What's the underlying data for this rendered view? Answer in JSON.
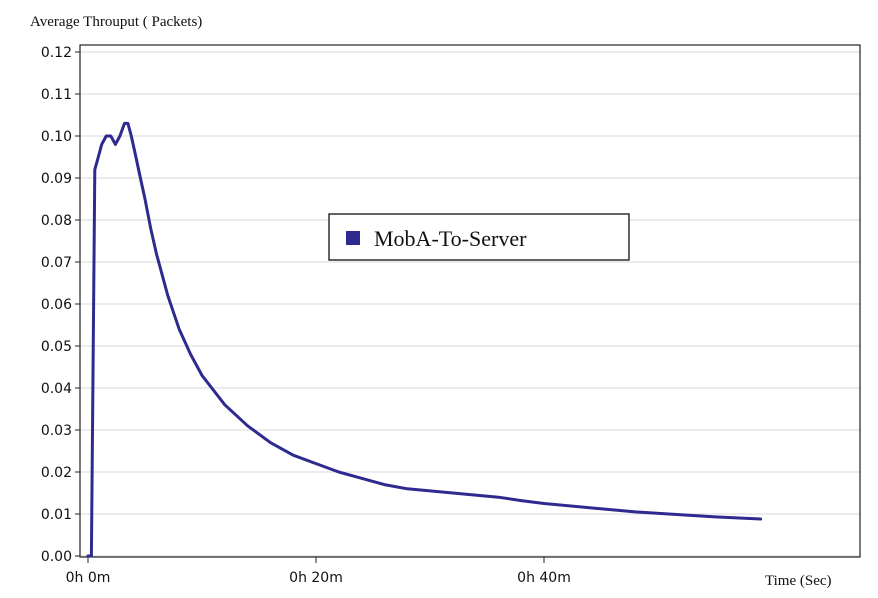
{
  "chart_data": {
    "type": "line",
    "ylabel": "Average Throuput ( Packets)",
    "xlabel": "Time (Sec)",
    "xlim": [
      0,
      57
    ],
    "ylim": [
      0,
      0.12
    ],
    "y_ticks": [
      "0.00",
      "0.01",
      "0.02",
      "0.03",
      "0.04",
      "0.05",
      "0.06",
      "0.07",
      "0.08",
      "0.09",
      "0.10",
      "0.11",
      "0.12"
    ],
    "x_ticks": [
      {
        "label": "0h 0m",
        "value": 0
      },
      {
        "label": "0h 20m",
        "value": 20
      },
      {
        "label": "0h 40m",
        "value": 40
      }
    ],
    "grid": true,
    "legend": {
      "position": "center",
      "entries": [
        "MobA-To-Server"
      ]
    },
    "colors": {
      "series": "#2e2a8f",
      "grid": "#d9d9d9",
      "axis": "#222222"
    },
    "series": [
      {
        "name": "MobA-To-Server",
        "x": [
          0,
          0.3,
          0.6,
          0.9,
          1.2,
          1.6,
          2.0,
          2.4,
          2.8,
          3.2,
          3.5,
          3.8,
          4.2,
          4.6,
          5.0,
          5.5,
          6.0,
          7.0,
          8.0,
          9.0,
          10.0,
          12.0,
          14.0,
          16.0,
          18.0,
          20.0,
          22.0,
          24.0,
          26.0,
          28.0,
          30.0,
          32.0,
          34.0,
          36.0,
          38.0,
          40.0,
          44.0,
          48.0,
          52.0,
          55.0,
          59.0
        ],
        "y": [
          0.0,
          0.0,
          0.092,
          0.095,
          0.098,
          0.1,
          0.1,
          0.098,
          0.1,
          0.103,
          0.103,
          0.1,
          0.095,
          0.09,
          0.085,
          0.078,
          0.072,
          0.062,
          0.054,
          0.048,
          0.043,
          0.036,
          0.031,
          0.027,
          0.024,
          0.022,
          0.02,
          0.0185,
          0.017,
          0.016,
          0.0155,
          0.015,
          0.0145,
          0.014,
          0.0132,
          0.0125,
          0.0115,
          0.0105,
          0.0098,
          0.0093,
          0.0088
        ]
      }
    ]
  }
}
